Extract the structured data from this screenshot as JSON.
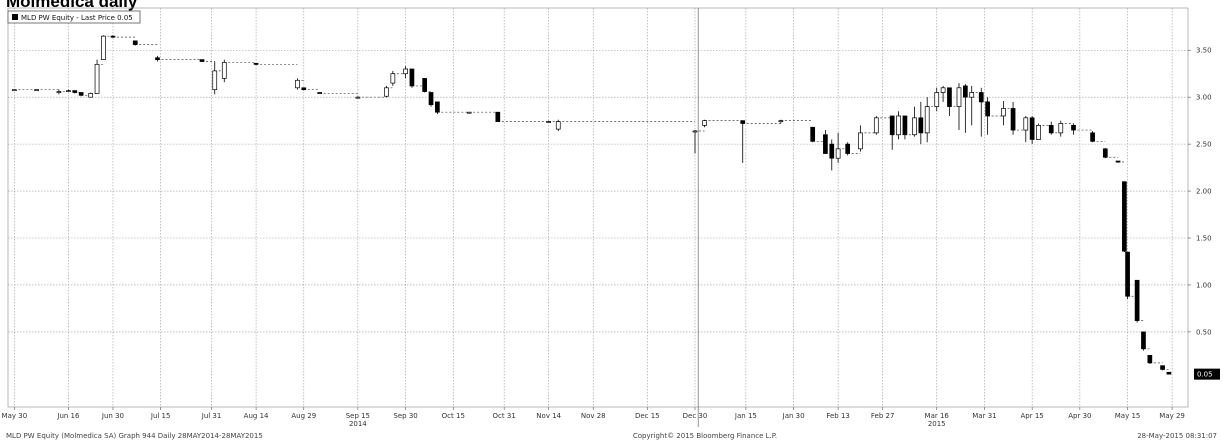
{
  "page": {
    "title": "Molmedica daily"
  },
  "legend": {
    "label": "MLD PW Equity - Last Price 0.05"
  },
  "footer": {
    "left": "MLD PW Equity (Molmedica SA) Graph 944  Daily 28MAY2014-28MAY2015",
    "center": "Copyright© 2015 Bloomberg Finance L.P.",
    "right": "28-May-2015 08:31:07"
  },
  "last_price_label": "0.05",
  "colors": {
    "up_candle": "#ffffff",
    "down_candle": "#000000",
    "grid": "#9a9a9a",
    "last_price_badge": "#000000"
  },
  "chart_data": {
    "type": "candlestick",
    "y_range": [
      -0.3,
      3.95
    ],
    "y_ticks": [
      "0.50",
      "1.00",
      "1.50",
      "2.00",
      "2.50",
      "3.00",
      "3.50"
    ],
    "x_range": [
      "2014-05-28",
      "2015-06-03"
    ],
    "x_ticks": [
      {
        "date": "2014-05-30",
        "label": "May 30"
      },
      {
        "date": "2014-06-16",
        "label": "Jun 16"
      },
      {
        "date": "2014-06-30",
        "label": "Jun 30"
      },
      {
        "date": "2014-07-15",
        "label": "Jul 15"
      },
      {
        "date": "2014-07-31",
        "label": "Jul 31"
      },
      {
        "date": "2014-08-14",
        "label": "Aug 14"
      },
      {
        "date": "2014-08-29",
        "label": "Aug 29"
      },
      {
        "date": "2014-09-15",
        "label": "Sep 15"
      },
      {
        "date": "2014-09-30",
        "label": "Sep 30"
      },
      {
        "date": "2014-10-15",
        "label": "Oct 15"
      },
      {
        "date": "2014-10-31",
        "label": "Oct 31"
      },
      {
        "date": "2014-11-14",
        "label": "Nov 14"
      },
      {
        "date": "2014-11-28",
        "label": "Nov 28"
      },
      {
        "date": "2014-12-15",
        "label": "Dec 15"
      },
      {
        "date": "2014-12-30",
        "label": "Dec 30"
      },
      {
        "date": "2015-01-15",
        "label": "Jan 15"
      },
      {
        "date": "2015-01-30",
        "label": "Jan 30"
      },
      {
        "date": "2015-02-13",
        "label": "Feb 13"
      },
      {
        "date": "2015-02-27",
        "label": "Feb 27"
      },
      {
        "date": "2015-03-16",
        "label": "Mar 16"
      },
      {
        "date": "2015-03-31",
        "label": "Mar 31"
      },
      {
        "date": "2015-04-15",
        "label": "Apr 15"
      },
      {
        "date": "2015-04-30",
        "label": "Apr 30"
      },
      {
        "date": "2015-05-15",
        "label": "May 15"
      },
      {
        "date": "2015-05-29",
        "label": "May 29"
      }
    ],
    "year_labels": [
      {
        "date": "2014-09-15",
        "label": "2014"
      },
      {
        "date": "2015-03-16",
        "label": "2015"
      }
    ],
    "year_divider": "2014-12-31",
    "candles": [
      {
        "d": "2014-05-30",
        "o": 3.08,
        "h": 3.08,
        "l": 3.08,
        "c": 3.08
      },
      {
        "d": "2014-06-06",
        "o": 3.08,
        "h": 3.08,
        "l": 3.08,
        "c": 3.08
      },
      {
        "d": "2014-06-13",
        "o": 3.06,
        "h": 3.08,
        "l": 3.03,
        "c": 3.06
      },
      {
        "d": "2014-06-16",
        "o": 3.07,
        "h": 3.08,
        "l": 3.06,
        "c": 3.07
      },
      {
        "d": "2014-06-18",
        "o": 3.07,
        "h": 3.07,
        "l": 3.04,
        "c": 3.05
      },
      {
        "d": "2014-06-20",
        "o": 3.05,
        "h": 3.05,
        "l": 3.01,
        "c": 3.02
      },
      {
        "d": "2014-06-23",
        "o": 3.0,
        "h": 3.05,
        "l": 3.0,
        "c": 3.04
      },
      {
        "d": "2014-06-25",
        "o": 3.04,
        "h": 3.4,
        "l": 3.04,
        "c": 3.35
      },
      {
        "d": "2014-06-27",
        "o": 3.4,
        "h": 3.66,
        "l": 3.4,
        "c": 3.65
      },
      {
        "d": "2014-06-30",
        "o": 3.65,
        "h": 3.66,
        "l": 3.63,
        "c": 3.64
      },
      {
        "d": "2014-07-07",
        "o": 3.6,
        "h": 3.6,
        "l": 3.55,
        "c": 3.56
      },
      {
        "d": "2014-07-14",
        "o": 3.42,
        "h": 3.44,
        "l": 3.38,
        "c": 3.4
      },
      {
        "d": "2014-07-28",
        "o": 3.4,
        "h": 3.4,
        "l": 3.38,
        "c": 3.38
      },
      {
        "d": "2014-08-01",
        "o": 3.08,
        "h": 3.38,
        "l": 3.03,
        "c": 3.28
      },
      {
        "d": "2014-08-04",
        "o": 3.2,
        "h": 3.4,
        "l": 3.16,
        "c": 3.37
      },
      {
        "d": "2014-08-14",
        "o": 3.36,
        "h": 3.36,
        "l": 3.34,
        "c": 3.35
      },
      {
        "d": "2014-08-27",
        "o": 3.1,
        "h": 3.2,
        "l": 3.08,
        "c": 3.18
      },
      {
        "d": "2014-08-29",
        "o": 3.1,
        "h": 3.1,
        "l": 3.07,
        "c": 3.08
      },
      {
        "d": "2014-09-03",
        "o": 3.05,
        "h": 3.05,
        "l": 3.04,
        "c": 3.04
      },
      {
        "d": "2014-09-15",
        "o": 3.0,
        "h": 3.01,
        "l": 3.0,
        "c": 3.0
      },
      {
        "d": "2014-09-24",
        "o": 3.01,
        "h": 3.12,
        "l": 3.0,
        "c": 3.1
      },
      {
        "d": "2014-09-26",
        "o": 3.15,
        "h": 3.28,
        "l": 3.12,
        "c": 3.25
      },
      {
        "d": "2014-09-30",
        "o": 3.25,
        "h": 3.33,
        "l": 3.2,
        "c": 3.3
      },
      {
        "d": "2014-10-02",
        "o": 3.3,
        "h": 3.3,
        "l": 3.1,
        "c": 3.12
      },
      {
        "d": "2014-10-06",
        "o": 3.2,
        "h": 3.2,
        "l": 3.05,
        "c": 3.06
      },
      {
        "d": "2014-10-08",
        "o": 3.05,
        "h": 3.05,
        "l": 2.9,
        "c": 2.92
      },
      {
        "d": "2014-10-10",
        "o": 2.95,
        "h": 2.95,
        "l": 2.82,
        "c": 2.84
      },
      {
        "d": "2014-10-20",
        "o": 2.84,
        "h": 2.84,
        "l": 2.84,
        "c": 2.84
      },
      {
        "d": "2014-10-29",
        "o": 2.84,
        "h": 2.84,
        "l": 2.74,
        "c": 2.74
      },
      {
        "d": "2014-11-14",
        "o": 2.74,
        "h": 2.75,
        "l": 2.73,
        "c": 2.74
      },
      {
        "d": "2014-11-17",
        "o": 2.66,
        "h": 2.76,
        "l": 2.64,
        "c": 2.74
      },
      {
        "d": "2014-12-30",
        "o": 2.64,
        "h": 2.65,
        "l": 2.4,
        "c": 2.64
      },
      {
        "d": "2015-01-02",
        "o": 2.7,
        "h": 2.76,
        "l": 2.68,
        "c": 2.75
      },
      {
        "d": "2015-01-14",
        "o": 2.75,
        "h": 2.75,
        "l": 2.3,
        "c": 2.72
      },
      {
        "d": "2015-01-26",
        "o": 2.74,
        "h": 2.76,
        "l": 2.72,
        "c": 2.75
      },
      {
        "d": "2015-02-05",
        "o": 2.68,
        "h": 2.68,
        "l": 2.52,
        "c": 2.53
      },
      {
        "d": "2015-02-09",
        "o": 2.6,
        "h": 2.65,
        "l": 2.4,
        "c": 2.4
      },
      {
        "d": "2015-02-11",
        "o": 2.5,
        "h": 2.55,
        "l": 2.22,
        "c": 2.35
      },
      {
        "d": "2015-02-13",
        "o": 2.35,
        "h": 2.62,
        "l": 2.3,
        "c": 2.45
      },
      {
        "d": "2015-02-16",
        "o": 2.5,
        "h": 2.52,
        "l": 2.38,
        "c": 2.4
      },
      {
        "d": "2015-02-20",
        "o": 2.45,
        "h": 2.7,
        "l": 2.42,
        "c": 2.62
      },
      {
        "d": "2015-02-25",
        "o": 2.62,
        "h": 2.8,
        "l": 2.6,
        "c": 2.78
      },
      {
        "d": "2015-03-02",
        "o": 2.8,
        "h": 2.8,
        "l": 2.44,
        "c": 2.6
      },
      {
        "d": "2015-03-04",
        "o": 2.6,
        "h": 2.85,
        "l": 2.55,
        "c": 2.8
      },
      {
        "d": "2015-03-06",
        "o": 2.8,
        "h": 2.8,
        "l": 2.55,
        "c": 2.6
      },
      {
        "d": "2015-03-09",
        "o": 2.6,
        "h": 2.9,
        "l": 2.58,
        "c": 2.78
      },
      {
        "d": "2015-03-11",
        "o": 2.78,
        "h": 2.95,
        "l": 2.5,
        "c": 2.62
      },
      {
        "d": "2015-03-13",
        "o": 2.62,
        "h": 3.0,
        "l": 2.52,
        "c": 2.9
      },
      {
        "d": "2015-03-16",
        "o": 2.9,
        "h": 3.1,
        "l": 2.85,
        "c": 3.05
      },
      {
        "d": "2015-03-18",
        "o": 3.05,
        "h": 3.12,
        "l": 2.95,
        "c": 3.1
      },
      {
        "d": "2015-03-20",
        "o": 3.1,
        "h": 3.1,
        "l": 2.8,
        "c": 2.9
      },
      {
        "d": "2015-03-23",
        "o": 2.9,
        "h": 3.15,
        "l": 2.65,
        "c": 3.1
      },
      {
        "d": "2015-03-25",
        "o": 3.12,
        "h": 3.14,
        "l": 2.62,
        "c": 3.0
      },
      {
        "d": "2015-03-27",
        "o": 3.0,
        "h": 3.12,
        "l": 2.7,
        "c": 3.05
      },
      {
        "d": "2015-03-30",
        "o": 3.05,
        "h": 3.1,
        "l": 2.58,
        "c": 2.95
      },
      {
        "d": "2015-04-01",
        "o": 2.95,
        "h": 3.0,
        "l": 2.6,
        "c": 2.8
      },
      {
        "d": "2015-04-06",
        "o": 2.8,
        "h": 2.96,
        "l": 2.7,
        "c": 2.88
      },
      {
        "d": "2015-04-09",
        "o": 2.88,
        "h": 2.95,
        "l": 2.6,
        "c": 2.65
      },
      {
        "d": "2015-04-13",
        "o": 2.65,
        "h": 2.8,
        "l": 2.52,
        "c": 2.78
      },
      {
        "d": "2015-04-15",
        "o": 2.78,
        "h": 2.8,
        "l": 2.5,
        "c": 2.55
      },
      {
        "d": "2015-04-17",
        "o": 2.55,
        "h": 2.72,
        "l": 2.55,
        "c": 2.7
      },
      {
        "d": "2015-04-21",
        "o": 2.7,
        "h": 2.74,
        "l": 2.6,
        "c": 2.62
      },
      {
        "d": "2015-04-24",
        "o": 2.62,
        "h": 2.75,
        "l": 2.58,
        "c": 2.72
      },
      {
        "d": "2015-04-28",
        "o": 2.7,
        "h": 2.72,
        "l": 2.6,
        "c": 2.65
      },
      {
        "d": "2015-05-04",
        "o": 2.62,
        "h": 2.64,
        "l": 2.52,
        "c": 2.53
      },
      {
        "d": "2015-05-08",
        "o": 2.45,
        "h": 2.46,
        "l": 2.35,
        "c": 2.36
      },
      {
        "d": "2015-05-12",
        "o": 2.32,
        "h": 2.32,
        "l": 2.3,
        "c": 2.31
      },
      {
        "d": "2015-05-14",
        "o": 2.1,
        "h": 2.1,
        "l": 1.35,
        "c": 1.36
      },
      {
        "d": "2015-05-15",
        "o": 1.35,
        "h": 1.35,
        "l": 0.85,
        "c": 0.88
      },
      {
        "d": "2015-05-18",
        "o": 1.05,
        "h": 1.05,
        "l": 0.6,
        "c": 0.62
      },
      {
        "d": "2015-05-20",
        "o": 0.5,
        "h": 0.5,
        "l": 0.3,
        "c": 0.32
      },
      {
        "d": "2015-05-22",
        "o": 0.25,
        "h": 0.25,
        "l": 0.16,
        "c": 0.17
      },
      {
        "d": "2015-05-26",
        "o": 0.14,
        "h": 0.14,
        "l": 0.09,
        "c": 0.1
      },
      {
        "d": "2015-05-28",
        "o": 0.07,
        "h": 0.07,
        "l": 0.05,
        "c": 0.05
      }
    ]
  }
}
